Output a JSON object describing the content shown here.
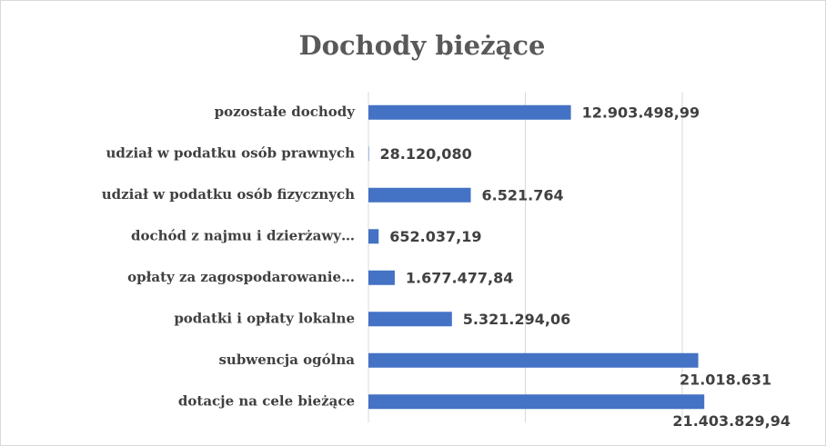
{
  "chart_data": {
    "type": "bar",
    "orientation": "horizontal",
    "title": "Dochody bieżące",
    "categories": [
      "pozostałe dochody",
      "udział w podatku osób prawnych",
      "udział w podatku osób fizycznych",
      "dochód z najmu i dzierżawy…",
      "opłaty za zagospodarowanie…",
      "podatki i opłaty lokalne",
      "subwencja ogólna",
      "dotacje na cele bieżące"
    ],
    "values": [
      12903498.99,
      28120.08,
      6521764,
      652037.19,
      1677477.84,
      5321294.06,
      21018631,
      21403829.94
    ],
    "value_labels": [
      "12.903.498,99",
      "28.120,080",
      "6.521.764",
      "652.037,19",
      "1.677.477,84",
      "5.321.294,06",
      "21.018.631",
      "21.403.829,94"
    ],
    "color": "#4472c4",
    "xlim": [
      0,
      28000000
    ],
    "xticks": [
      0,
      10000000,
      20000000
    ],
    "grid": true
  }
}
